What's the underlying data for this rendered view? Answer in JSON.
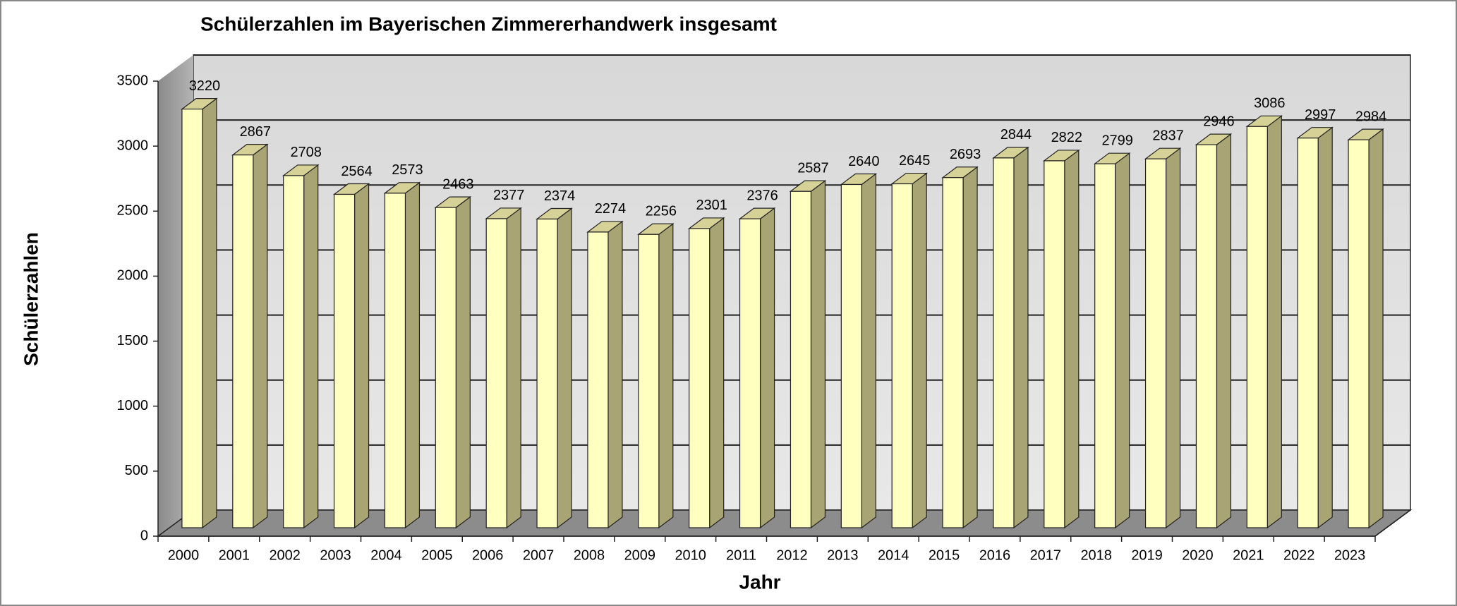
{
  "chart_data": {
    "type": "bar3d",
    "title": "Schülerzahlen im Bayerischen Zimmererhandwerk insgesamt",
    "x_label": "Jahr",
    "y_label": "Schülerzahlen",
    "categories": [
      "2000",
      "2001",
      "2002",
      "2003",
      "2004",
      "2005",
      "2006",
      "2007",
      "2008",
      "2009",
      "2010",
      "2011",
      "2012",
      "2013",
      "2014",
      "2015",
      "2016",
      "2017",
      "2018",
      "2019",
      "2020",
      "2021",
      "2022",
      "2023"
    ],
    "values": [
      3220,
      2867,
      2708,
      2564,
      2573,
      2463,
      2377,
      2374,
      2274,
      2256,
      2301,
      2376,
      2587,
      2640,
      2645,
      2693,
      2844,
      2822,
      2799,
      2837,
      2946,
      3086,
      2997,
      2984
    ],
    "color": "#ffffc0",
    "ylim": [
      0,
      3500
    ],
    "yticks": [
      0,
      500,
      1000,
      1500,
      2000,
      2500,
      3000,
      3500
    ],
    "grid": true
  }
}
